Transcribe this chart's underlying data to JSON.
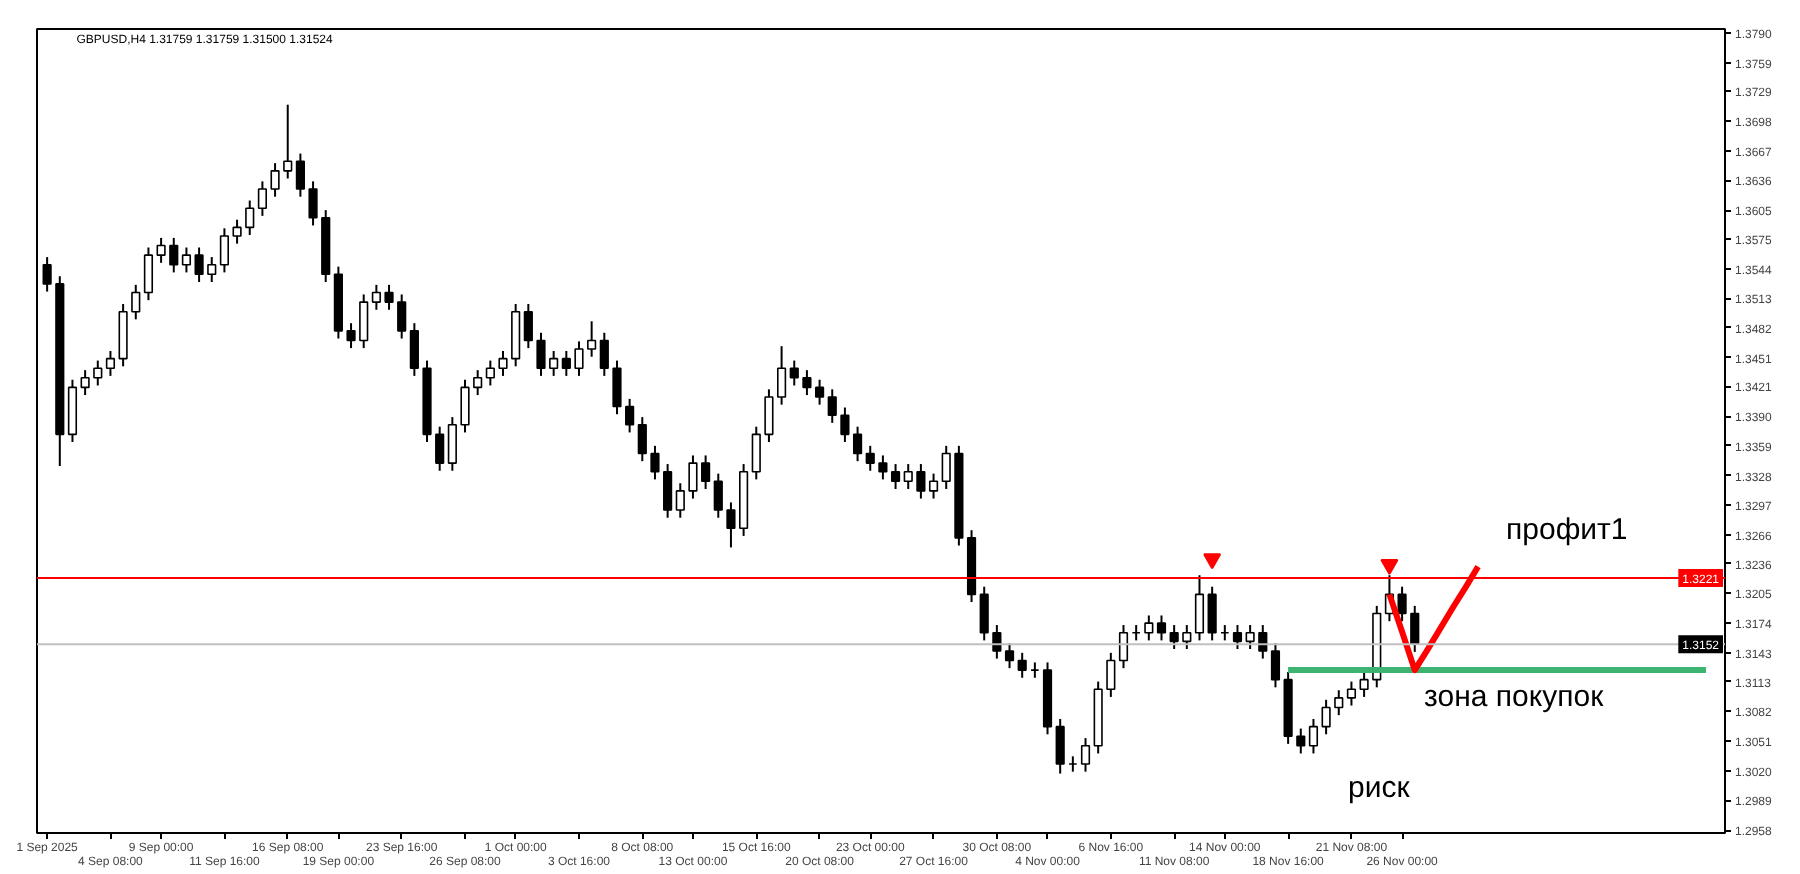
{
  "chart_data": {
    "type": "candlestick",
    "title": "GBPUSD,H4 1.31759 1.31759 1.31500 1.31524",
    "color": "#000000",
    "categories": [
      "1 Sep 2025",
      null,
      null,
      null,
      null,
      "4 Sep 08:00",
      null,
      null,
      null,
      "9 Sep 00:00",
      null,
      null,
      null,
      null,
      "11 Sep 16:00",
      null,
      null,
      null,
      null,
      "16 Sep 08:00",
      null,
      null,
      null,
      "19 Sep 00:00",
      null,
      null,
      null,
      null,
      "23 Sep 16:00",
      null,
      null,
      null,
      null,
      "26 Sep 08:00",
      null,
      null,
      null,
      "1 Oct 00:00",
      null,
      null,
      null,
      null,
      "3 Oct 16:00",
      null,
      null,
      null,
      null,
      "8 Oct 08:00",
      null,
      null,
      null,
      "13 Oct 00:00",
      null,
      null,
      null,
      null,
      "15 Oct 16:00",
      null,
      null,
      null,
      null,
      "20 Oct 08:00",
      null,
      null,
      null,
      "23 Oct 00:00",
      null,
      null,
      null,
      null,
      "27 Oct 16:00",
      null,
      null,
      null,
      null,
      "30 Oct 08:00",
      null,
      null,
      null,
      "4 Nov 00:00",
      null,
      null,
      null,
      null,
      "6 Nov 16:00",
      null,
      null,
      null,
      null,
      "11 Nov 08:00",
      null,
      null,
      null,
      "14 Nov 00:00",
      null,
      null,
      null,
      null,
      "18 Nov 16:00",
      null,
      null,
      null,
      null,
      "21 Nov 08:00",
      null,
      null,
      null,
      "26 Nov 00:00",
      null,
      null,
      null,
      null,
      null,
      null,
      null,
      null,
      null,
      null,
      null,
      null,
      null,
      null,
      null,
      null,
      null,
      null,
      null,
      null,
      null,
      null,
      null,
      null
    ],
    "ohlc": [
      [
        1.3548,
        1.3556,
        1.352,
        1.3528
      ],
      [
        1.3528,
        1.3536,
        1.3338,
        1.3371
      ],
      [
        1.3371,
        1.3428,
        1.3363,
        1.342
      ],
      [
        1.342,
        1.3438,
        1.3412,
        1.343
      ],
      [
        1.343,
        1.3448,
        1.3422,
        1.344
      ],
      [
        1.344,
        1.3458,
        1.3432,
        1.345
      ],
      [
        1.345,
        1.3507,
        1.3442,
        1.3499
      ],
      [
        1.3499,
        1.3527,
        1.3491,
        1.3519
      ],
      [
        1.3519,
        1.3566,
        1.3511,
        1.3558
      ],
      [
        1.3558,
        1.3576,
        1.355,
        1.3568
      ],
      [
        1.3568,
        1.3576,
        1.354,
        1.3548
      ],
      [
        1.3548,
        1.3566,
        1.354,
        1.3558
      ],
      [
        1.3558,
        1.3566,
        1.353,
        1.3538
      ],
      [
        1.3538,
        1.3556,
        1.353,
        1.3548
      ],
      [
        1.3548,
        1.3586,
        1.354,
        1.3578
      ],
      [
        1.3578,
        1.3595,
        1.357,
        1.3587
      ],
      [
        1.3587,
        1.3615,
        1.3579,
        1.3607
      ],
      [
        1.3607,
        1.3635,
        1.3599,
        1.3627
      ],
      [
        1.3627,
        1.3654,
        1.3619,
        1.3646
      ],
      [
        1.3646,
        1.3715,
        1.3638,
        1.3656
      ],
      [
        1.3656,
        1.3664,
        1.3619,
        1.3627
      ],
      [
        1.3627,
        1.3635,
        1.3589,
        1.3597
      ],
      [
        1.3597,
        1.3605,
        1.353,
        1.3538
      ],
      [
        1.3538,
        1.3546,
        1.3471,
        1.3479
      ],
      [
        1.3479,
        1.3487,
        1.3461,
        1.3469
      ],
      [
        1.3469,
        1.3517,
        1.3461,
        1.3509
      ],
      [
        1.3509,
        1.3527,
        1.3501,
        1.3519
      ],
      [
        1.3519,
        1.3527,
        1.3501,
        1.3509
      ],
      [
        1.3509,
        1.3517,
        1.3471,
        1.3479
      ],
      [
        1.3479,
        1.3487,
        1.3432,
        1.344
      ],
      [
        1.344,
        1.3448,
        1.3363,
        1.3371
      ],
      [
        1.3371,
        1.3379,
        1.3333,
        1.3341
      ],
      [
        1.3341,
        1.3389,
        1.3333,
        1.3381
      ],
      [
        1.3381,
        1.3428,
        1.3373,
        1.342
      ],
      [
        1.342,
        1.3438,
        1.3412,
        1.343
      ],
      [
        1.343,
        1.3448,
        1.3422,
        1.344
      ],
      [
        1.344,
        1.3458,
        1.3432,
        1.345
      ],
      [
        1.345,
        1.3507,
        1.3442,
        1.3499
      ],
      [
        1.3499,
        1.3507,
        1.3461,
        1.3469
      ],
      [
        1.3469,
        1.3477,
        1.3432,
        1.344
      ],
      [
        1.344,
        1.3458,
        1.3432,
        1.345
      ],
      [
        1.345,
        1.3458,
        1.3432,
        1.344
      ],
      [
        1.344,
        1.3468,
        1.3432,
        1.346
      ],
      [
        1.346,
        1.3489,
        1.3452,
        1.3469
      ],
      [
        1.3469,
        1.3477,
        1.3432,
        1.344
      ],
      [
        1.344,
        1.3448,
        1.3392,
        1.34
      ],
      [
        1.34,
        1.3408,
        1.3373,
        1.3381
      ],
      [
        1.3381,
        1.3389,
        1.3343,
        1.3351
      ],
      [
        1.3351,
        1.3359,
        1.3324,
        1.3332
      ],
      [
        1.3332,
        1.334,
        1.3284,
        1.3292
      ],
      [
        1.3292,
        1.332,
        1.3284,
        1.3312
      ],
      [
        1.3312,
        1.3349,
        1.3304,
        1.3341
      ],
      [
        1.3341,
        1.3349,
        1.3314,
        1.3322
      ],
      [
        1.3322,
        1.333,
        1.3284,
        1.3292
      ],
      [
        1.3292,
        1.33,
        1.3253,
        1.3273
      ],
      [
        1.3273,
        1.334,
        1.3265,
        1.3332
      ],
      [
        1.3332,
        1.3379,
        1.3324,
        1.3371
      ],
      [
        1.3371,
        1.3418,
        1.3363,
        1.341
      ],
      [
        1.341,
        1.3463,
        1.3402,
        1.344
      ],
      [
        1.344,
        1.3448,
        1.3422,
        1.343
      ],
      [
        1.343,
        1.3438,
        1.3412,
        1.342
      ],
      [
        1.342,
        1.3428,
        1.3402,
        1.341
      ],
      [
        1.341,
        1.3418,
        1.3383,
        1.3391
      ],
      [
        1.3391,
        1.3399,
        1.3363,
        1.3371
      ],
      [
        1.3371,
        1.3379,
        1.3343,
        1.3351
      ],
      [
        1.3351,
        1.3359,
        1.3333,
        1.3341
      ],
      [
        1.3341,
        1.3349,
        1.3324,
        1.3332
      ],
      [
        1.3332,
        1.334,
        1.3314,
        1.3322
      ],
      [
        1.3322,
        1.334,
        1.3314,
        1.3332
      ],
      [
        1.3332,
        1.334,
        1.3304,
        1.3312
      ],
      [
        1.3312,
        1.333,
        1.3304,
        1.3322
      ],
      [
        1.3322,
        1.3359,
        1.3314,
        1.3351
      ],
      [
        1.3351,
        1.3359,
        1.3255,
        1.3263
      ],
      [
        1.3263,
        1.3271,
        1.3196,
        1.3204
      ],
      [
        1.3204,
        1.3212,
        1.3156,
        1.3164
      ],
      [
        1.3164,
        1.3172,
        1.3137,
        1.3145
      ],
      [
        1.3145,
        1.3153,
        1.3127,
        1.3135
      ],
      [
        1.3135,
        1.3143,
        1.3117,
        1.3125
      ],
      [
        1.3125,
        1.3133,
        1.3117,
        1.3125
      ],
      [
        1.3125,
        1.3133,
        1.3058,
        1.3066
      ],
      [
        1.3066,
        1.3074,
        1.3017,
        1.3027
      ],
      [
        1.3027,
        1.3035,
        1.3019,
        1.3027
      ],
      [
        1.3027,
        1.3054,
        1.3019,
        1.3046
      ],
      [
        1.3046,
        1.3113,
        1.3038,
        1.3105
      ],
      [
        1.3105,
        1.3143,
        1.3097,
        1.3135
      ],
      [
        1.3135,
        1.3172,
        1.3127,
        1.3164
      ],
      [
        1.3164,
        1.3172,
        1.3156,
        1.3164
      ],
      [
        1.3164,
        1.3182,
        1.3156,
        1.3174
      ],
      [
        1.3174,
        1.3182,
        1.3156,
        1.3164
      ],
      [
        1.3164,
        1.3172,
        1.3147,
        1.3155
      ],
      [
        1.3155,
        1.3172,
        1.3147,
        1.3164
      ],
      [
        1.3164,
        1.3224,
        1.3156,
        1.3204
      ],
      [
        1.3204,
        1.3212,
        1.3156,
        1.3164
      ],
      [
        1.3164,
        1.3172,
        1.3156,
        1.3164
      ],
      [
        1.3164,
        1.3172,
        1.3147,
        1.3155
      ],
      [
        1.3155,
        1.3172,
        1.3147,
        1.3164
      ],
      [
        1.3164,
        1.3172,
        1.3137,
        1.3145
      ],
      [
        1.3145,
        1.3153,
        1.3107,
        1.3115
      ],
      [
        1.3115,
        1.3123,
        1.3048,
        1.3056
      ],
      [
        1.3056,
        1.3064,
        1.3038,
        1.3046
      ],
      [
        1.3046,
        1.3074,
        1.3038,
        1.3066
      ],
      [
        1.3066,
        1.3094,
        1.3058,
        1.3086
      ],
      [
        1.3086,
        1.3104,
        1.3078,
        1.3096
      ],
      [
        1.3096,
        1.3113,
        1.3088,
        1.3105
      ],
      [
        1.3105,
        1.3123,
        1.3097,
        1.3115
      ],
      [
        1.3115,
        1.3192,
        1.3107,
        1.3184
      ],
      [
        1.3184,
        1.3224,
        1.3176,
        1.3204
      ],
      [
        1.3204,
        1.3212,
        1.3176,
        1.3184
      ],
      [
        1.3184,
        1.3192,
        1.3144,
        1.3152
      ],
      null,
      null,
      null,
      null,
      null,
      null,
      null,
      null,
      null,
      null,
      null,
      null,
      null,
      null,
      null,
      null,
      null,
      null,
      null,
      null,
      null,
      null,
      null
    ],
    "series": [
      {
        "type": "line",
        "name": "зона покупок",
        "color": "#3cb371",
        "values": [
          null,
          null,
          null,
          null,
          null,
          null,
          null,
          null,
          null,
          null,
          null,
          null,
          null,
          null,
          null,
          null,
          null,
          null,
          null,
          null,
          null,
          null,
          null,
          null,
          null,
          null,
          null,
          null,
          null,
          null,
          null,
          null,
          null,
          null,
          null,
          null,
          null,
          null,
          null,
          null,
          null,
          null,
          null,
          null,
          null,
          null,
          null,
          null,
          null,
          null,
          null,
          null,
          null,
          null,
          null,
          null,
          null,
          null,
          null,
          null,
          null,
          null,
          null,
          null,
          null,
          null,
          null,
          null,
          null,
          null,
          null,
          null,
          null,
          null,
          null,
          null,
          null,
          null,
          null,
          null,
          null,
          null,
          null,
          null,
          null,
          null,
          null,
          null,
          null,
          null,
          null,
          null,
          null,
          null,
          null,
          null,
          null,
          null,
          1.3125,
          1.3125,
          1.3125,
          1.3125,
          1.3125,
          1.3125,
          1.3125,
          1.3125,
          1.3125,
          1.3125,
          1.3125,
          1.3125,
          1.3125,
          1.3125,
          1.3125,
          1.3125,
          1.3125,
          1.3125,
          1.3125,
          1.3125,
          1.3125,
          1.3125,
          1.3125,
          1.3125,
          1.3125,
          1.3125,
          1.3125,
          1.3125,
          1.3125,
          1.3125,
          1.3125,
          1.3125,
          1.3125,
          1.3125
        ]
      },
      {
        "type": "line",
        "name": "профит1",
        "color": "#ff0000",
        "values": [
          null,
          null,
          null,
          null,
          null,
          null,
          null,
          null,
          null,
          null,
          null,
          null,
          null,
          null,
          null,
          null,
          null,
          null,
          null,
          null,
          null,
          null,
          null,
          null,
          null,
          null,
          null,
          null,
          null,
          null,
          null,
          null,
          null,
          null,
          null,
          null,
          null,
          null,
          null,
          null,
          null,
          null,
          null,
          null,
          null,
          null,
          null,
          null,
          null,
          null,
          null,
          null,
          null,
          null,
          null,
          null,
          null,
          null,
          null,
          null,
          null,
          null,
          null,
          null,
          null,
          null,
          null,
          null,
          null,
          null,
          null,
          null,
          null,
          null,
          null,
          null,
          null,
          null,
          null,
          null,
          null,
          null,
          null,
          null,
          null,
          null,
          null,
          null,
          null,
          null,
          null,
          null,
          null,
          null,
          null,
          null,
          null,
          null,
          null,
          null,
          null,
          null,
          null,
          null,
          null,
          null,
          1.3204,
          1.3165,
          1.3125,
          1.3146,
          1.3168,
          1.319,
          1.3211,
          1.3233,
          null,
          null,
          null,
          null,
          null,
          null,
          null,
          null,
          null,
          null,
          null,
          null,
          null,
          null,
          null,
          null,
          null,
          null
        ]
      },
      {
        "type": "scatter",
        "marker": "triangle",
        "color": "#ff0000",
        "values": [
          null,
          null,
          null,
          null,
          null,
          null,
          null,
          null,
          null,
          null,
          null,
          null,
          null,
          null,
          null,
          null,
          null,
          null,
          null,
          null,
          null,
          null,
          null,
          null,
          null,
          null,
          null,
          null,
          null,
          null,
          null,
          null,
          null,
          null,
          null,
          null,
          null,
          null,
          null,
          null,
          null,
          null,
          null,
          null,
          null,
          null,
          null,
          null,
          null,
          null,
          null,
          null,
          null,
          null,
          null,
          null,
          null,
          null,
          null,
          null,
          null,
          null,
          null,
          null,
          null,
          null,
          null,
          null,
          null,
          null,
          null,
          null,
          null,
          null,
          null,
          null,
          null,
          null,
          null,
          null,
          null,
          null,
          null,
          null,
          null,
          null,
          null,
          null,
          null,
          null,
          null,
          null,
          1.3241,
          null,
          null,
          null,
          null,
          null,
          null,
          null,
          null,
          null,
          null,
          null,
          null,
          null,
          1.3235,
          null,
          null,
          null,
          null,
          null,
          null,
          null,
          null,
          null,
          null,
          null,
          null,
          null,
          null,
          null,
          null,
          null,
          null,
          null,
          null,
          null,
          null,
          null,
          null,
          null
        ]
      }
    ],
    "annotations": [
      "риск"
    ],
    "ref_lines": [
      {
        "axis": "y",
        "value": 1.3221,
        "label": "1.3221",
        "color": "#ff0000",
        "line_style": "solid"
      },
      {
        "axis": "y",
        "value": 1.3152,
        "label": "1.3152",
        "color": "#c0c0c0",
        "line_style": "solid"
      }
    ],
    "ylim": [
      1.2955,
      1.3794
    ],
    "yticks": [
      {
        "value": 1.379,
        "label": "1.3790"
      },
      1.3759,
      1.3729,
      1.3698,
      1.3667,
      1.3636,
      1.3605,
      1.3575,
      1.3544,
      1.3513,
      1.3482,
      1.3451,
      1.3421,
      {
        "value": 1.339,
        "label": "1.3390"
      },
      1.3359,
      1.3328,
      1.3297,
      1.3266,
      1.3236,
      1.3205,
      1.3174,
      1.3143,
      1.3113,
      1.3082,
      1.3051,
      {
        "value": 1.302,
        "label": "1.3020"
      },
      1.2989,
      1.2958
    ],
    "legend": false,
    "grid": false
  }
}
